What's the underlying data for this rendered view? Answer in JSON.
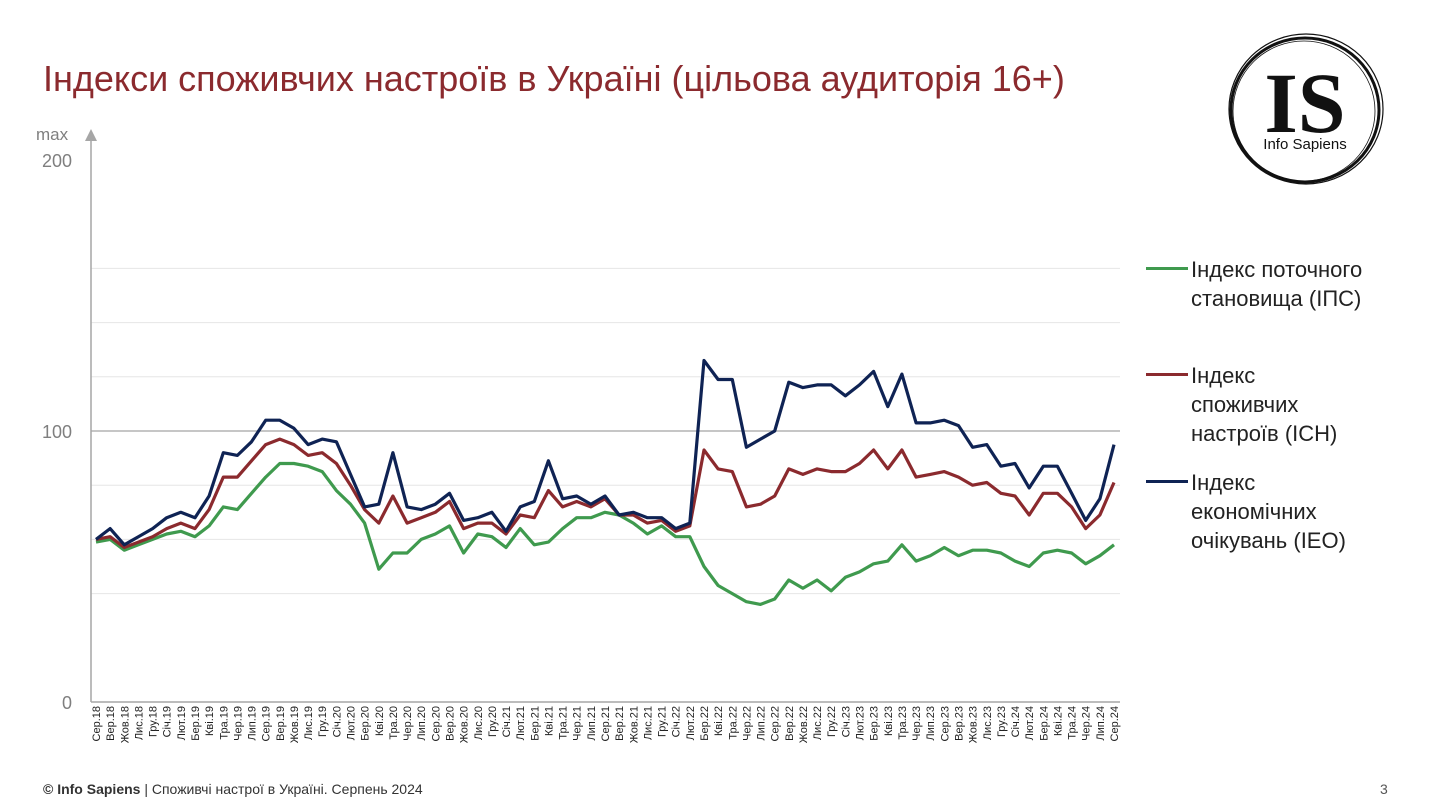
{
  "title": "Індекси споживчих настроїв в Україні (цільова аудиторія 16+)",
  "logo": {
    "text_big": "IS",
    "text_small": "Info Sapiens"
  },
  "footer": {
    "copyright": "© Info Sapiens",
    "rest": " | Споживчі настрої в Україні. Серпень 2024"
  },
  "page_number": "3",
  "chart_data": {
    "type": "line",
    "ylim": [
      0,
      200
    ],
    "yticks": [
      {
        "value": 200,
        "label": "200"
      },
      {
        "value": 100,
        "label": "100"
      },
      {
        "value": 0,
        "label": "0"
      }
    ],
    "y_max_label": "max",
    "reference_line": 100,
    "gridlines": [
      160,
      140,
      120,
      80,
      60,
      40
    ],
    "categories": [
      "Сер.18",
      "Вер.18",
      "Жов.18",
      "Лис.18",
      "Гру.18",
      "Січ.19",
      "Лют.19",
      "Бер.19",
      "Кві.19",
      "Тра.19",
      "Чер.19",
      "Лип.19",
      "Сер.19",
      "Вер.19",
      "Жов.19",
      "Лис.19",
      "Гру.19",
      "Січ.20",
      "Лют.20",
      "Бер.20",
      "Кві.20",
      "Тра.20",
      "Чер.20",
      "Лип.20",
      "Сер.20",
      "Вер.20",
      "Жов.20",
      "Лис.20",
      "Гру.20",
      "Січ.21",
      "Лют.21",
      "Бер.21",
      "Кві.21",
      "Тра.21",
      "Чер.21",
      "Лип.21",
      "Сер.21",
      "Вер.21",
      "Жов.21",
      "Лис.21",
      "Гру.21",
      "Січ.22",
      "Лют.22",
      "Бер.22",
      "Кві.22",
      "Тра.22",
      "Чер.22",
      "Лип.22",
      "Сер.22",
      "Вер.22",
      "Жов.22",
      "Лис.22",
      "Гру.22",
      "Січ.23",
      "Лют.23",
      "Бер.23",
      "Кві.23",
      "Тра.23",
      "Чер.23",
      "Лип.23",
      "Сер.23",
      "Вер.23",
      "Жов.23",
      "Лис.23",
      "Гру.23",
      "Січ.24",
      "Лют.24",
      "Бер.24",
      "Кві.24",
      "Тра.24",
      "Чер.24",
      "Лип.24",
      "Сер.24"
    ],
    "series": [
      {
        "name": "Індекс поточного становища (ІПС)",
        "color": "#3f9a4e",
        "values": [
          59,
          60,
          56,
          58,
          60,
          62,
          63,
          61,
          65,
          72,
          71,
          77,
          83,
          88,
          88,
          87,
          85,
          78,
          73,
          66,
          49,
          55,
          55,
          60,
          62,
          65,
          55,
          62,
          61,
          57,
          64,
          58,
          59,
          64,
          68,
          68,
          70,
          69,
          66,
          62,
          65,
          61,
          61,
          50,
          43,
          40,
          37,
          36,
          38,
          45,
          42,
          45,
          41,
          46,
          48,
          51,
          52,
          58,
          52,
          54,
          57,
          54,
          56,
          56,
          55,
          52,
          50,
          55,
          56,
          55,
          51,
          54,
          58
        ],
        "label_lines": [
          "Індекс поточного",
          "становища (ІПС)"
        ]
      },
      {
        "name": "Індекс споживчих настроїв (ІСН)",
        "color": "#8b2a2e",
        "values": [
          60,
          61,
          57,
          59,
          61,
          64,
          66,
          64,
          71,
          83,
          83,
          89,
          95,
          97,
          95,
          91,
          92,
          88,
          80,
          71,
          66,
          76,
          66,
          68,
          70,
          74,
          64,
          66,
          66,
          62,
          69,
          68,
          78,
          72,
          74,
          72,
          75,
          69,
          69,
          66,
          67,
          63,
          65,
          93,
          86,
          85,
          72,
          73,
          76,
          86,
          84,
          86,
          85,
          85,
          88,
          93,
          86,
          93,
          83,
          84,
          85,
          83,
          80,
          81,
          77,
          76,
          69,
          77,
          77,
          72,
          64,
          69,
          81
        ],
        "label_lines": [
          "Індекс",
          "споживчих",
          "настроїв (ІСН)"
        ]
      },
      {
        "name": "Індекс економічних очікувань (ІЕО)",
        "color": "#0f2354",
        "values": [
          60,
          64,
          58,
          61,
          64,
          68,
          70,
          68,
          76,
          92,
          91,
          96,
          104,
          104,
          101,
          95,
          97,
          96,
          84,
          72,
          73,
          92,
          72,
          71,
          73,
          77,
          67,
          68,
          70,
          63,
          72,
          74,
          89,
          75,
          76,
          73,
          76,
          69,
          70,
          68,
          68,
          64,
          66,
          126,
          119,
          119,
          94,
          97,
          100,
          118,
          116,
          117,
          117,
          113,
          117,
          122,
          109,
          121,
          103,
          103,
          104,
          102,
          94,
          95,
          87,
          88,
          79,
          87,
          87,
          77,
          67,
          75,
          95
        ],
        "label_lines": [
          "Індекс",
          "економічних",
          "очікувань (ІЕО)"
        ]
      }
    ],
    "legend_position": "right"
  }
}
